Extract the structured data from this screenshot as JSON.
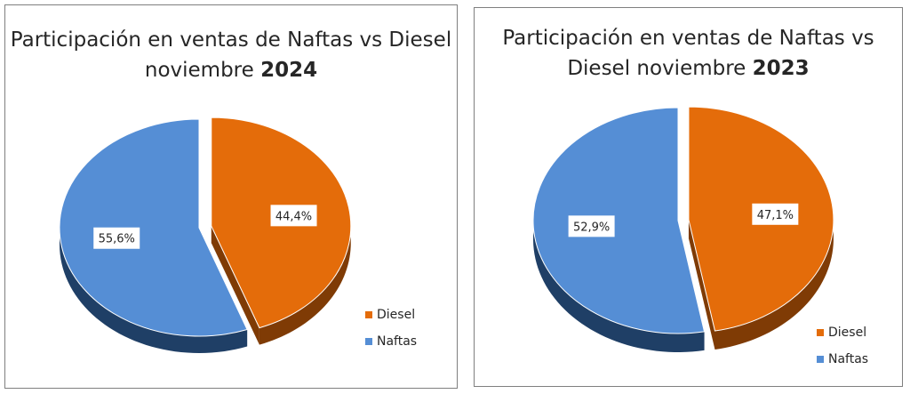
{
  "colors": {
    "diesel": "#e46c0a",
    "diesel_side": "#7f3b05",
    "naftas": "#558ed5",
    "naftas_side": "#1f3f66",
    "label_bg": "#ffffff",
    "text": "#262626"
  },
  "chart_data": [
    {
      "type": "pie",
      "title_prefix": "Participación en ventas de Naftas vs Diesel noviembre",
      "title_year": "2024",
      "slices": [
        {
          "name": "Diesel",
          "value": 44.4,
          "label": "44,4%"
        },
        {
          "name": "Naftas",
          "value": 55.6,
          "label": "55,6%"
        }
      ],
      "legend": [
        "Diesel",
        "Naftas"
      ],
      "legend_position": "bottom-right",
      "exploded_slice": "Diesel"
    },
    {
      "type": "pie",
      "title_prefix": "Participación en ventas de Naftas vs Diesel noviembre",
      "title_year": "2023",
      "slices": [
        {
          "name": "Diesel",
          "value": 47.1,
          "label": "47,1%"
        },
        {
          "name": "Naftas",
          "value": 52.9,
          "label": "52,9%"
        }
      ],
      "legend": [
        "Diesel",
        "Naftas"
      ],
      "legend_position": "bottom-right",
      "exploded_slice": "Diesel"
    }
  ]
}
